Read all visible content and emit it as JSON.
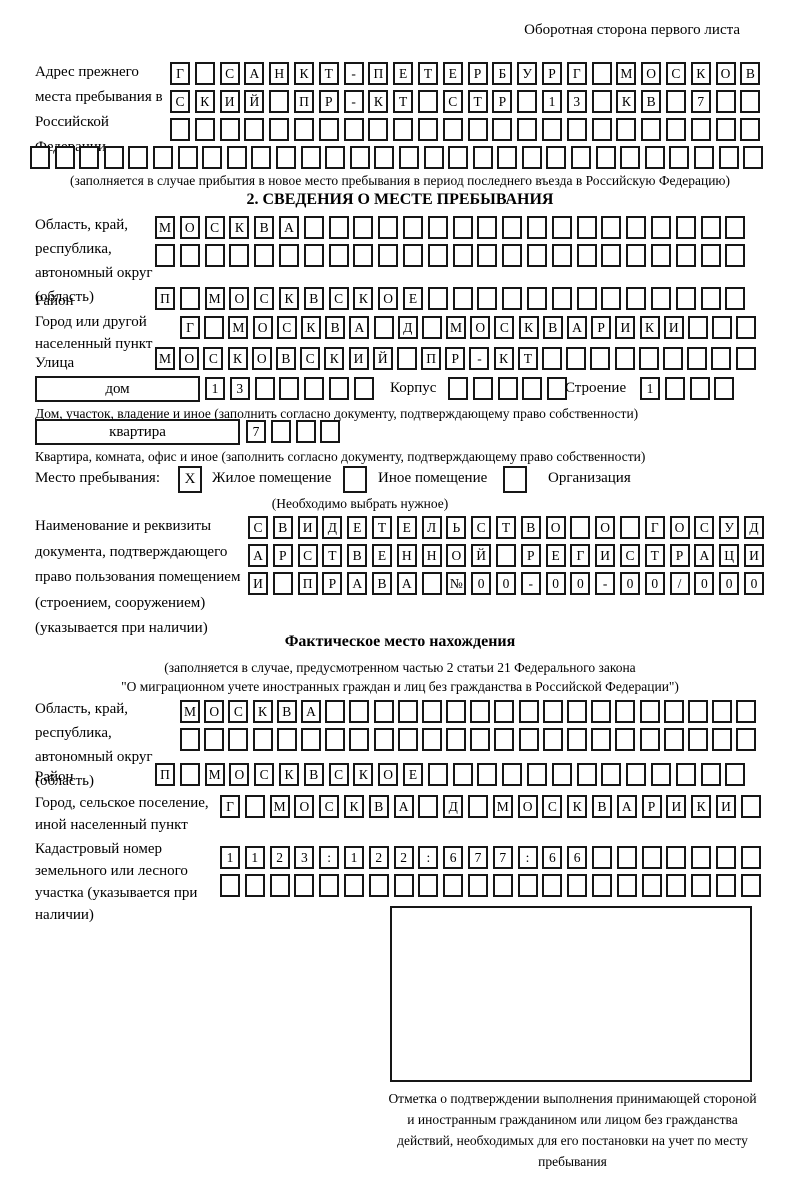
{
  "title": "Оборотная сторона первого листа",
  "prev_address": {
    "label": "Адрес прежнего места пребывания в Российской Федерации",
    "rows": [
      {
        "cells": 24,
        "text": "Г САНКТ-ПЕТЕРБУРГ МОСКОВ"
      },
      {
        "cells": 24,
        "text": "СКИЙ ПР-КТ СТР 13 КВ 7"
      },
      {
        "cells": 24,
        "text": ""
      },
      {
        "cells": 30,
        "text": ""
      }
    ],
    "caption": "(заполняется в случае прибытия в новое место пребывания в период последнего въезда в Российскую Федерацию)"
  },
  "section2": {
    "header": "2. СВЕДЕНИЯ О МЕСТЕ ПРЕБЫВАНИЯ",
    "region": {
      "label": "Область, край, республика, автономный округ (область)",
      "rows": [
        {
          "cells": 24,
          "text": "МОСКВА"
        },
        {
          "cells": 24,
          "text": ""
        }
      ]
    },
    "district": {
      "label": "Район",
      "row": {
        "cells": 24,
        "text": "П МОСКВСКОЕ"
      }
    },
    "city": {
      "label": "Город или другой населенный пункт",
      "row": {
        "cells": 24,
        "text": "Г МОСКВА Д МОСКВАРИКИ"
      }
    },
    "street": {
      "label": "Улица",
      "row": {
        "cells": 25,
        "text": "МОСКОВСКИЙ ПР-КТ"
      }
    },
    "house": {
      "box_label": "дом",
      "row": {
        "cells": 7,
        "text": "13"
      },
      "korpus_label": "Корпус",
      "korpus_row": {
        "cells": 5,
        "text": ""
      },
      "stroenie_label": "Строение",
      "stroenie_row": {
        "cells": 4,
        "text": "1"
      },
      "caption": "Дом, участок, владение и иное (заполнить согласно документу, подтверждающему право собственности)"
    },
    "apartment": {
      "box_label": "квартира",
      "row": {
        "cells": 4,
        "text": "7"
      },
      "caption": "Квартира, комната, офис и иное (заполнить согласно документу, подтверждающему право собственности)"
    },
    "stay_type": {
      "label": "Место пребывания:",
      "options": [
        {
          "label": "Жилое помещение",
          "mark": "X"
        },
        {
          "label": "Иное помещение",
          "mark": ""
        },
        {
          "label": "Организация",
          "mark": ""
        }
      ],
      "caption": "(Необходимо выбрать нужное)"
    },
    "document": {
      "label": "Наименование и реквизиты документа, подтверждающего право пользования помещением (строением, сооружением) (указывается при наличии)",
      "rows": [
        {
          "cells": 21,
          "text": "СВИДЕТЕЛЬСТВО О ГОСУД"
        },
        {
          "cells": 21,
          "text": "АРСТВЕННОЙ РЕГИСТРАЦИ"
        },
        {
          "cells": 21,
          "text": "И ПРАВА №00-00-00/000"
        }
      ]
    }
  },
  "actual_location": {
    "header": "Фактическое место нахождения",
    "caption_lines": [
      "(заполняется в случае, предусмотренном частью 2 статьи 21 Федерального закона",
      "\"О миграционном учете иностранных граждан и лиц без гражданства в Российской Федерации\")"
    ],
    "region": {
      "label": "Область, край, республика, автономный округ (область)",
      "rows": [
        {
          "cells": 24,
          "text": "МОСКВА"
        },
        {
          "cells": 24,
          "text": ""
        }
      ]
    },
    "district": {
      "label": "Район",
      "row": {
        "cells": 24,
        "text": "П МОСКВСКОЕ"
      }
    },
    "city": {
      "label": "Город, сельское поселение, иной населенный пункт",
      "row": {
        "cells": 22,
        "text": "Г МОСКВА Д МОСКВАРИКИ"
      }
    },
    "cadastre": {
      "label": "Кадастровый номер земельного или лесного участка (указывается при наличии)",
      "rows": [
        {
          "cells": 22,
          "text": "1123:122:677:66"
        },
        {
          "cells": 22,
          "text": ""
        }
      ]
    },
    "stamp_caption": "Отметка о подтверждении выполнения принимающей стороной и иностранным гражданином или лицом без гражданства действий, необходимых для его постановки на учет по месту пребывания"
  }
}
